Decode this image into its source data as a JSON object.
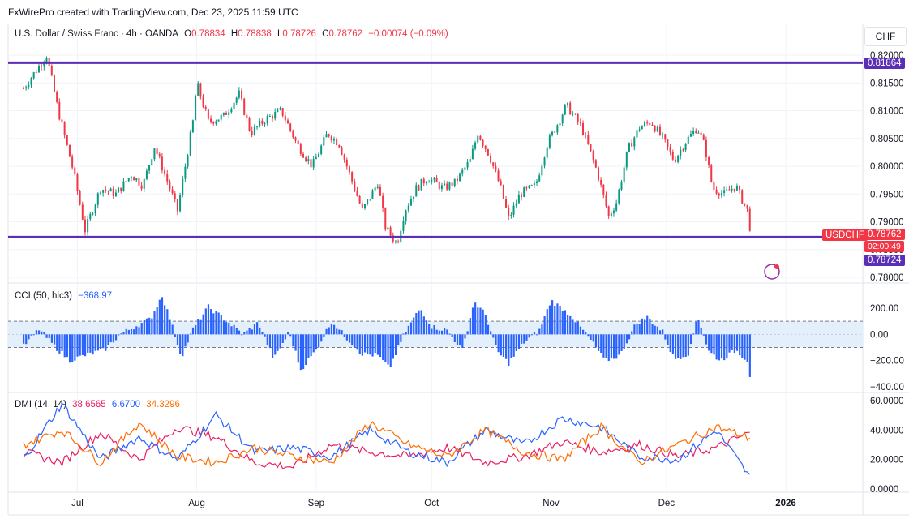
{
  "header": {
    "credit": "FxWirePro created with TradingView.com, Dec 23, 2025 11:59 UTC"
  },
  "currency_button": "CHF",
  "price_legend": {
    "symbol": "U.S. Dollar / Swiss Franc · 4h · OANDA",
    "o_label": "O",
    "o": "0.78834",
    "h_label": "H",
    "h": "0.78838",
    "l_label": "L",
    "l": "0.78726",
    "c_label": "C",
    "c": "0.78762",
    "change": "−0.00074 (−0.09%)"
  },
  "price_tags": {
    "resistance": "0.81864",
    "symbol": "USDCHF",
    "last": "0.78762",
    "countdown": "02:00:49",
    "support": "0.78724"
  },
  "cci_legend": {
    "label": "CCI (50, hlc3)",
    "value": "−368.97"
  },
  "dmi_legend": {
    "label": "DMI (14, 14)",
    "plus_di": "38.6565",
    "minus_di": "6.6700",
    "adx": "34.3296"
  },
  "colors": {
    "resistance_line": "#5b2fb5",
    "support_line": "#5b2fb5",
    "up_candle": "#089981",
    "down_candle": "#f23645",
    "cci": "#2962ff",
    "plus_di": "#e91e63",
    "minus_di": "#2962ff",
    "adx": "#ff6d00"
  },
  "chart_data": [
    {
      "type": "candlestick",
      "interval": "4h",
      "y_ticks": [
        "0.82000",
        "0.81500",
        "0.81000",
        "0.80500",
        "0.80000",
        "0.79500",
        "0.79000",
        "0.78500",
        "0.78000"
      ],
      "ylim": [
        0.78,
        0.82
      ],
      "x_ticks": [
        "Jul",
        "Aug",
        "Sep",
        "Oct",
        "Nov",
        "Dec",
        "2026"
      ],
      "horizontal_lines": [
        0.81864,
        0.78724
      ],
      "close_path": [
        {
          "date": "2025-06-17",
          "close": 0.814
        },
        {
          "date": "2025-06-23",
          "close": 0.82
        },
        {
          "date": "2025-06-26",
          "close": 0.81
        },
        {
          "date": "2025-06-30",
          "close": 0.799
        },
        {
          "date": "2025-07-03",
          "close": 0.7885
        },
        {
          "date": "2025-07-07",
          "close": 0.796
        },
        {
          "date": "2025-07-11",
          "close": 0.795
        },
        {
          "date": "2025-07-15",
          "close": 0.7985
        },
        {
          "date": "2025-07-18",
          "close": 0.7965
        },
        {
          "date": "2025-07-21",
          "close": 0.8035
        },
        {
          "date": "2025-07-24",
          "close": 0.798
        },
        {
          "date": "2025-07-27",
          "close": 0.792
        },
        {
          "date": "2025-07-31",
          "close": 0.808
        },
        {
          "date": "2025-08-01",
          "close": 0.815
        },
        {
          "date": "2025-08-04",
          "close": 0.808
        },
        {
          "date": "2025-08-08",
          "close": 0.809
        },
        {
          "date": "2025-08-12",
          "close": 0.813
        },
        {
          "date": "2025-08-15",
          "close": 0.806
        },
        {
          "date": "2025-08-19",
          "close": 0.8085
        },
        {
          "date": "2025-08-23",
          "close": 0.81
        },
        {
          "date": "2025-08-27",
          "close": 0.804
        },
        {
          "date": "2025-08-31",
          "close": 0.8
        },
        {
          "date": "2025-09-04",
          "close": 0.806
        },
        {
          "date": "2025-09-07",
          "close": 0.804
        },
        {
          "date": "2025-09-10",
          "close": 0.798
        },
        {
          "date": "2025-09-13",
          "close": 0.792
        },
        {
          "date": "2025-09-17",
          "close": 0.797
        },
        {
          "date": "2025-09-19",
          "close": 0.789
        },
        {
          "date": "2025-09-22",
          "close": 0.786
        },
        {
          "date": "2025-09-24",
          "close": 0.792
        },
        {
          "date": "2025-09-27",
          "close": 0.796
        },
        {
          "date": "2025-09-30",
          "close": 0.798
        },
        {
          "date": "2025-10-04",
          "close": 0.796
        },
        {
          "date": "2025-10-07",
          "close": 0.797
        },
        {
          "date": "2025-10-11",
          "close": 0.801
        },
        {
          "date": "2025-10-13",
          "close": 0.806
        },
        {
          "date": "2025-10-16",
          "close": 0.802
        },
        {
          "date": "2025-10-19",
          "close": 0.796
        },
        {
          "date": "2025-10-21",
          "close": 0.7905
        },
        {
          "date": "2025-10-24",
          "close": 0.795
        },
        {
          "date": "2025-10-28",
          "close": 0.7965
        },
        {
          "date": "2025-10-31",
          "close": 0.804
        },
        {
          "date": "2025-11-03",
          "close": 0.808
        },
        {
          "date": "2025-11-05",
          "close": 0.811
        },
        {
          "date": "2025-11-09",
          "close": 0.807
        },
        {
          "date": "2025-11-13",
          "close": 0.799
        },
        {
          "date": "2025-11-16",
          "close": 0.791
        },
        {
          "date": "2025-11-18",
          "close": 0.7935
        },
        {
          "date": "2025-11-21",
          "close": 0.803
        },
        {
          "date": "2025-11-24",
          "close": 0.807
        },
        {
          "date": "2025-11-27",
          "close": 0.808
        },
        {
          "date": "2025-11-30",
          "close": 0.805
        },
        {
          "date": "2025-12-03",
          "close": 0.801
        },
        {
          "date": "2025-12-06",
          "close": 0.8045
        },
        {
          "date": "2025-12-09",
          "close": 0.807
        },
        {
          "date": "2025-12-11",
          "close": 0.8035
        },
        {
          "date": "2025-12-13",
          "close": 0.796
        },
        {
          "date": "2025-12-16",
          "close": 0.795
        },
        {
          "date": "2025-12-19",
          "close": 0.7965
        },
        {
          "date": "2025-12-22",
          "close": 0.792
        },
        {
          "date": "2025-12-23",
          "close": 0.78762
        }
      ]
    },
    {
      "type": "histogram",
      "title": "CCI (50, hlc3)",
      "y_ticks": [
        "200.00",
        "0.00",
        "−200.00",
        "−400.00"
      ],
      "ylim": [
        -400,
        300
      ],
      "band": [
        -100,
        100
      ],
      "last_value": -368.97,
      "points": [
        {
          "date": "2025-06-17",
          "value": -90
        },
        {
          "date": "2025-06-21",
          "value": 40
        },
        {
          "date": "2025-06-25",
          "value": -90
        },
        {
          "date": "2025-06-29",
          "value": -200
        },
        {
          "date": "2025-07-03",
          "value": -160
        },
        {
          "date": "2025-07-08",
          "value": -120
        },
        {
          "date": "2025-07-12",
          "value": 0
        },
        {
          "date": "2025-07-16",
          "value": 60
        },
        {
          "date": "2025-07-20",
          "value": 120
        },
        {
          "date": "2025-07-23",
          "value": 300
        },
        {
          "date": "2025-07-25",
          "value": 120
        },
        {
          "date": "2025-07-28",
          "value": -170
        },
        {
          "date": "2025-07-31",
          "value": 40
        },
        {
          "date": "2025-08-04",
          "value": 210
        },
        {
          "date": "2025-08-08",
          "value": 120
        },
        {
          "date": "2025-08-13",
          "value": 0
        },
        {
          "date": "2025-08-17",
          "value": 90
        },
        {
          "date": "2025-08-21",
          "value": -190
        },
        {
          "date": "2025-08-25",
          "value": 20
        },
        {
          "date": "2025-08-28",
          "value": -270
        },
        {
          "date": "2025-09-01",
          "value": -120
        },
        {
          "date": "2025-09-05",
          "value": 100
        },
        {
          "date": "2025-09-09",
          "value": -30
        },
        {
          "date": "2025-09-13",
          "value": -150
        },
        {
          "date": "2025-09-17",
          "value": -160
        },
        {
          "date": "2025-09-20",
          "value": -260
        },
        {
          "date": "2025-09-24",
          "value": 10
        },
        {
          "date": "2025-09-28",
          "value": 200
        },
        {
          "date": "2025-10-01",
          "value": 60
        },
        {
          "date": "2025-10-05",
          "value": 30
        },
        {
          "date": "2025-10-09",
          "value": -120
        },
        {
          "date": "2025-10-12",
          "value": 250
        },
        {
          "date": "2025-10-15",
          "value": 150
        },
        {
          "date": "2025-10-18",
          "value": -130
        },
        {
          "date": "2025-10-21",
          "value": -220
        },
        {
          "date": "2025-10-25",
          "value": -60
        },
        {
          "date": "2025-10-29",
          "value": 30
        },
        {
          "date": "2025-11-01",
          "value": 260
        },
        {
          "date": "2025-11-06",
          "value": 150
        },
        {
          "date": "2025-11-11",
          "value": -30
        },
        {
          "date": "2025-11-15",
          "value": -200
        },
        {
          "date": "2025-11-19",
          "value": -160
        },
        {
          "date": "2025-11-23",
          "value": 80
        },
        {
          "date": "2025-11-26",
          "value": 130
        },
        {
          "date": "2025-11-30",
          "value": 20
        },
        {
          "date": "2025-12-03",
          "value": -190
        },
        {
          "date": "2025-12-07",
          "value": -140
        },
        {
          "date": "2025-12-09",
          "value": 150
        },
        {
          "date": "2025-12-12",
          "value": -130
        },
        {
          "date": "2025-12-15",
          "value": -200
        },
        {
          "date": "2025-12-19",
          "value": -120
        },
        {
          "date": "2025-12-22",
          "value": -200
        },
        {
          "date": "2025-12-23",
          "value": -368.97
        }
      ]
    },
    {
      "type": "line",
      "title": "DMI (14, 14)",
      "y_ticks": [
        "60.0000",
        "40.0000",
        "20.0000",
        "0.0000"
      ],
      "ylim": [
        0,
        60
      ],
      "x": [
        "2025-06-17",
        "2025-06-27",
        "2025-07-07",
        "2025-07-17",
        "2025-07-27",
        "2025-08-06",
        "2025-08-16",
        "2025-08-26",
        "2025-09-05",
        "2025-09-15",
        "2025-09-25",
        "2025-10-05",
        "2025-10-15",
        "2025-10-25",
        "2025-11-04",
        "2025-11-14",
        "2025-11-24",
        "2025-12-04",
        "2025-12-14",
        "2025-12-23"
      ],
      "series": [
        {
          "name": "+DI",
          "values": [
            25,
            18,
            38,
            20,
            42,
            35,
            18,
            15,
            30,
            25,
            22,
            28,
            18,
            22,
            32,
            25,
            30,
            22,
            28,
            38.6565
          ]
        },
        {
          "name": "−DI",
          "values": [
            20,
            58,
            20,
            35,
            20,
            50,
            25,
            28,
            22,
            40,
            25,
            18,
            40,
            30,
            48,
            42,
            22,
            20,
            40,
            6.67
          ]
        },
        {
          "name": "ADX",
          "values": [
            30,
            40,
            18,
            45,
            22,
            18,
            28,
            22,
            18,
            45,
            30,
            22,
            40,
            25,
            20,
            42,
            18,
            30,
            42,
            34.3296
          ]
        }
      ]
    }
  ]
}
